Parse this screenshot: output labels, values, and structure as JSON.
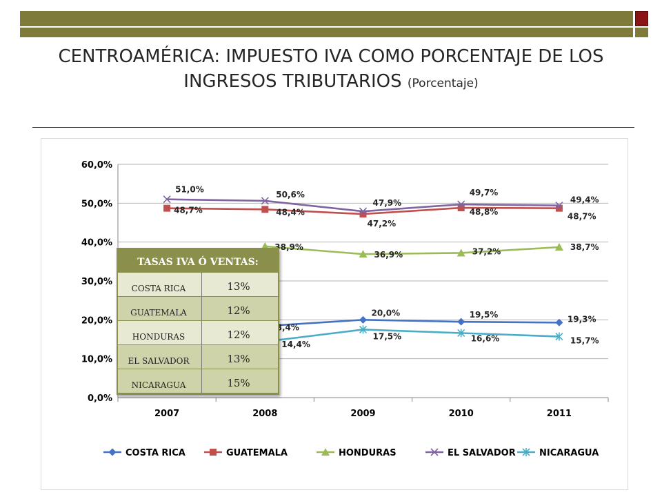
{
  "title": "CENTROAMÉRICA: IMPUESTO  IVA COMO PORCENTAJE DE LOS INGRESOS TRIBUTARIOS",
  "subtitle": "(Porcentaje)",
  "colors": {
    "costa_rica": "#4472c4",
    "guatemala": "#c0504d",
    "honduras": "#9bbb59",
    "el_salvador": "#8064a2",
    "nicaragua": "#4bacc6",
    "top_bar": "#7e7b3a",
    "table_bg": "#8b8f4c"
  },
  "chart_data": {
    "type": "line",
    "x": [
      "2007",
      "2008",
      "2009",
      "2010",
      "2011"
    ],
    "ylim": [
      0,
      60
    ],
    "yticks": [
      "0,0%",
      "10,0%",
      "20,0%",
      "30,0%",
      "40,0%",
      "50,0%",
      "60,0%"
    ],
    "grid": true,
    "legend": "bottom",
    "series": [
      {
        "name": "COSTA RICA",
        "marker": "diamond",
        "values": [
          null,
          18.4,
          20.0,
          19.5,
          19.3
        ],
        "labels": [
          "",
          "18,4%",
          "20,0%",
          "19,5%",
          "19,3%"
        ]
      },
      {
        "name": "GUATEMALA",
        "marker": "square",
        "values": [
          48.7,
          48.4,
          47.2,
          48.8,
          48.7
        ],
        "labels": [
          "48,7%",
          "48,4%",
          "47,2%",
          "48,8%",
          "48,7%"
        ]
      },
      {
        "name": "HONDURAS",
        "marker": "triangle",
        "values": [
          null,
          38.9,
          36.9,
          37.2,
          38.7
        ],
        "labels": [
          "",
          "38,9%",
          "36,9%",
          "37,2%",
          "38,7%"
        ]
      },
      {
        "name": "EL SALVADOR",
        "marker": "x",
        "values": [
          51.0,
          50.6,
          47.9,
          49.7,
          49.4
        ],
        "labels": [
          "51,0%",
          "50,6%",
          "47,9%",
          "49,7%",
          "49,4%"
        ]
      },
      {
        "name": "NICARAGUA",
        "marker": "asterisk",
        "values": [
          null,
          14.4,
          17.5,
          16.6,
          15.7
        ],
        "labels": [
          "",
          "14,4%",
          "17,5%",
          "16,6%",
          "15,7%"
        ]
      }
    ]
  },
  "tasas_table": {
    "title": "TASAS IVA Ó VENTAS:",
    "rows": [
      {
        "pais": "COSTA RICA",
        "tasa": "13%"
      },
      {
        "pais": "GUATEMALA",
        "tasa": "12%"
      },
      {
        "pais": "HONDURAS",
        "tasa": "12%"
      },
      {
        "pais": "EL SALVADOR",
        "tasa": "13%"
      },
      {
        "pais": "NICARAGUA",
        "tasa": "15%"
      }
    ]
  }
}
